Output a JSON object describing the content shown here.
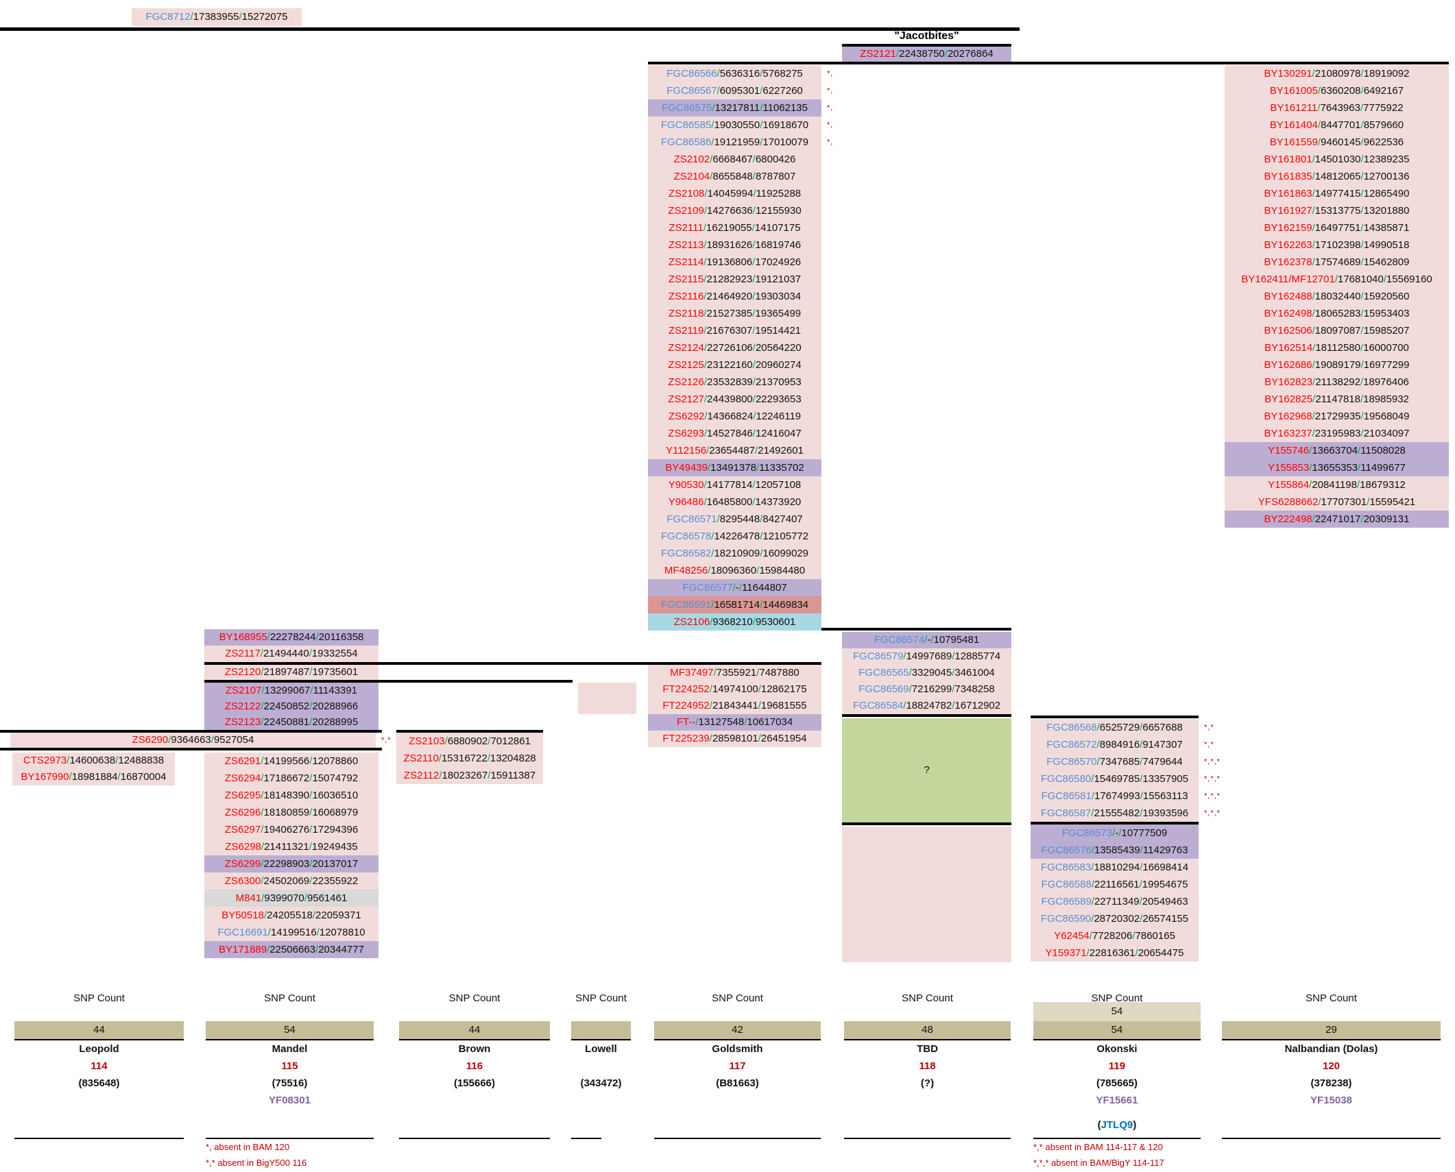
{
  "header": {
    "jacotbites": "\"Jacotbites\""
  },
  "tbd": {
    "question": "?"
  },
  "colors": {
    "row_pink": "#F2DCDB",
    "row_purple": "#BCAED2",
    "row_salmon": "#D99694",
    "row_cyan": "#A8D8E4",
    "row_gray": "#D9D9D9",
    "green_block": "#C3D69B",
    "count_box": "#C4BD97",
    "count_box_light": "#DDD9C3",
    "name_blue": "#558ED5",
    "name_red": "#FF0000",
    "slash_green": "#00B050",
    "dark_red": "#C00000",
    "yfull_purple": "#8064A2",
    "kit_blue": "#0070C0"
  },
  "blocks": {
    "top": [
      [
        "FGC8712",
        "b",
        [
          "17383955",
          "15272075"
        ],
        "p",
        ""
      ]
    ],
    "jacot": [
      [
        "ZS2121",
        "r",
        [
          "22438750",
          "20276864"
        ],
        "u",
        ""
      ]
    ],
    "middle": [
      [
        "FGC86566",
        "b",
        [
          "5636316",
          "5768275"
        ],
        "p",
        "*,"
      ],
      [
        "FGC86567",
        "b",
        [
          "6095301",
          "6227260"
        ],
        "p",
        "*,"
      ],
      [
        "FGC86575",
        "b",
        [
          "13217811",
          "11062135"
        ],
        "u",
        "*,"
      ],
      [
        "FGC86585",
        "b",
        [
          "19030550",
          "16918670"
        ],
        "p",
        "*,"
      ],
      [
        "FGC86586",
        "b",
        [
          "19121959",
          "17010079"
        ],
        "p",
        "*,"
      ],
      [
        "ZS2102",
        "r",
        [
          "6668467",
          "6800426"
        ],
        "p",
        ""
      ],
      [
        "ZS2104",
        "r",
        [
          "8655848",
          "8787807"
        ],
        "p",
        ""
      ],
      [
        "ZS2108",
        "r",
        [
          "14045994",
          "11925288"
        ],
        "p",
        ""
      ],
      [
        "ZS2109",
        "r",
        [
          "14276636",
          "12155930"
        ],
        "p",
        ""
      ],
      [
        "ZS2111",
        "r",
        [
          "16219055",
          "14107175"
        ],
        "p",
        ""
      ],
      [
        "ZS2113",
        "r",
        [
          "18931626",
          "16819746"
        ],
        "p",
        ""
      ],
      [
        "ZS2114",
        "r",
        [
          "19136806",
          "17024926"
        ],
        "p",
        ""
      ],
      [
        "ZS2115",
        "r",
        [
          "21282923",
          "19121037"
        ],
        "p",
        ""
      ],
      [
        "ZS2116",
        "r",
        [
          "21464920",
          "19303034"
        ],
        "p",
        ""
      ],
      [
        "ZS2118",
        "r",
        [
          "21527385",
          "19365499"
        ],
        "p",
        ""
      ],
      [
        "ZS2119",
        "r",
        [
          "21676307",
          "19514421"
        ],
        "p",
        ""
      ],
      [
        "ZS2124",
        "r",
        [
          "22726106",
          "20564220"
        ],
        "p",
        ""
      ],
      [
        "ZS2125",
        "r",
        [
          "23122160",
          "20960274"
        ],
        "p",
        ""
      ],
      [
        "ZS2126",
        "r",
        [
          "23532839",
          "21370953"
        ],
        "p",
        ""
      ],
      [
        "ZS2127",
        "r",
        [
          "24439800",
          "22293653"
        ],
        "p",
        ""
      ],
      [
        "ZS6292",
        "r",
        [
          "14366824",
          "12246119"
        ],
        "p",
        ""
      ],
      [
        "ZS6293",
        "r",
        [
          "14527846",
          "12416047"
        ],
        "p",
        ""
      ],
      [
        "Y112156",
        "r",
        [
          "23654487",
          "21492601"
        ],
        "p",
        ""
      ],
      [
        "BY49439",
        "r",
        [
          "13491378",
          "11335702"
        ],
        "u",
        ""
      ],
      [
        "Y90530",
        "r",
        [
          "14177814",
          "12057108"
        ],
        "p",
        ""
      ],
      [
        "Y96486",
        "r",
        [
          "16485800",
          "14373920"
        ],
        "p",
        ""
      ],
      [
        "FGC86571",
        "b",
        [
          "8295448",
          "8427407"
        ],
        "p",
        ""
      ],
      [
        "FGC86578",
        "b",
        [
          "14226478",
          "12105772"
        ],
        "p",
        ""
      ],
      [
        "FGC86582",
        "b",
        [
          "18210909",
          "16099029"
        ],
        "p",
        ""
      ],
      [
        "MF48256",
        "r",
        [
          "18096360",
          "15984480"
        ],
        "p",
        ""
      ],
      [
        "FGC86577",
        "b",
        [
          "-",
          "11644807"
        ],
        "u",
        ""
      ],
      [
        "FGC86591",
        "b",
        [
          "16581714",
          "14469834"
        ],
        "s",
        ""
      ],
      [
        "ZS2106",
        "r",
        [
          "9368210",
          "9530601"
        ],
        "c",
        ""
      ]
    ],
    "right": [
      [
        "BY130291",
        "r",
        [
          "21080978",
          "18919092"
        ],
        "p",
        ""
      ],
      [
        "BY161005",
        "r",
        [
          "6360208",
          "6492167"
        ],
        "p",
        ""
      ],
      [
        "BY161211",
        "r",
        [
          "7643963",
          "7775922"
        ],
        "p",
        ""
      ],
      [
        "BY161404",
        "r",
        [
          "8447701",
          "8579660"
        ],
        "p",
        ""
      ],
      [
        "BY161559",
        "r",
        [
          "9460145",
          "9622536"
        ],
        "p",
        ""
      ],
      [
        "BY161801",
        "r",
        [
          "14501030",
          "12389235"
        ],
        "p",
        ""
      ],
      [
        "BY161835",
        "r",
        [
          "14812065",
          "12700136"
        ],
        "p",
        ""
      ],
      [
        "BY161863",
        "r",
        [
          "14977415",
          "12865490"
        ],
        "p",
        ""
      ],
      [
        "BY161927",
        "r",
        [
          "15313775",
          "13201880"
        ],
        "p",
        ""
      ],
      [
        "BY162159",
        "r",
        [
          "16497751",
          "14385871"
        ],
        "p",
        ""
      ],
      [
        "BY162263",
        "r",
        [
          "17102398",
          "14990518"
        ],
        "p",
        ""
      ],
      [
        "BY162378",
        "r",
        [
          "17574689",
          "15462809"
        ],
        "p",
        ""
      ],
      [
        "BY162411/MF12701",
        "r",
        [
          "17681040",
          "15569160"
        ],
        "p",
        ""
      ],
      [
        "BY162488",
        "r",
        [
          "18032440",
          "15920560"
        ],
        "p",
        ""
      ],
      [
        "BY162498",
        "r",
        [
          "18065283",
          "15953403"
        ],
        "p",
        ""
      ],
      [
        "BY162506",
        "r",
        [
          "18097087",
          "15985207"
        ],
        "p",
        ""
      ],
      [
        "BY162514",
        "r",
        [
          "18112580",
          "16000700"
        ],
        "p",
        ""
      ],
      [
        "BY162686",
        "r",
        [
          "19089179",
          "16977299"
        ],
        "p",
        ""
      ],
      [
        "BY162823",
        "r",
        [
          "21138292",
          "18976406"
        ],
        "p",
        ""
      ],
      [
        "BY162825",
        "r",
        [
          "21147818",
          "18985932"
        ],
        "p",
        ""
      ],
      [
        "BY162968",
        "r",
        [
          "21729935",
          "19568049"
        ],
        "p",
        ""
      ],
      [
        "BY163237",
        "r",
        [
          "23195983",
          "21034097"
        ],
        "p",
        ""
      ],
      [
        "Y155746",
        "r",
        [
          "13663704",
          "11508028"
        ],
        "u",
        ""
      ],
      [
        "Y155853",
        "r",
        [
          "13655353",
          "11499677"
        ],
        "u",
        ""
      ],
      [
        "Y155864",
        "r",
        [
          "20841198",
          "18679312"
        ],
        "p",
        ""
      ],
      [
        "YFS6288662",
        "r",
        [
          "17707301",
          "15595421"
        ],
        "p",
        ""
      ],
      [
        "BY222498",
        "r",
        [
          "22471017",
          "20309131"
        ],
        "u",
        ""
      ]
    ],
    "left_a": [
      [
        "BY168955",
        "r",
        [
          "22278244",
          "20116358"
        ],
        "u",
        ""
      ],
      [
        "ZS2117",
        "r",
        [
          "21494440",
          "19332554"
        ],
        "p",
        ""
      ]
    ],
    "zs2120": [
      [
        "ZS2120",
        "r",
        [
          "21897487",
          "19735601"
        ],
        "p",
        ""
      ]
    ],
    "left_b": [
      [
        "ZS2107",
        "r",
        [
          "13299067",
          "11143391"
        ],
        "u",
        ""
      ],
      [
        "ZS2122",
        "r",
        [
          "22450852",
          "20288966"
        ],
        "u",
        ""
      ],
      [
        "ZS2123",
        "r",
        [
          "22450881",
          "20288995"
        ],
        "u",
        ""
      ]
    ],
    "zs6290": [
      [
        "ZS6290",
        "r",
        [
          "9364663",
          "9527054"
        ],
        "p",
        "*,*"
      ]
    ],
    "cts": [
      [
        "CTS2973",
        "r",
        [
          "14600638",
          "12488838"
        ],
        "p",
        ""
      ],
      [
        "BY167990",
        "r",
        [
          "18981884",
          "16870004"
        ],
        "p",
        ""
      ]
    ],
    "zs6291": [
      [
        "ZS6291",
        "r",
        [
          "14199566",
          "12078860"
        ],
        "p",
        ""
      ],
      [
        "ZS6294",
        "r",
        [
          "17186672",
          "15074792"
        ],
        "p",
        ""
      ],
      [
        "ZS6295",
        "r",
        [
          "18148390",
          "16036510"
        ],
        "p",
        ""
      ],
      [
        "ZS6296",
        "r",
        [
          "18180859",
          "16068979"
        ],
        "p",
        ""
      ],
      [
        "ZS6297",
        "r",
        [
          "19406276",
          "17294396"
        ],
        "p",
        ""
      ],
      [
        "ZS6298",
        "r",
        [
          "21411321",
          "19249435"
        ],
        "p",
        ""
      ],
      [
        "ZS6299",
        "r",
        [
          "22298903",
          "20137017"
        ],
        "u",
        ""
      ],
      [
        "ZS6300",
        "r",
        [
          "24502069",
          "22355922"
        ],
        "p",
        ""
      ],
      [
        "M841",
        "r",
        [
          "9399070",
          "9561461"
        ],
        "g",
        ""
      ],
      [
        "BY50518",
        "r",
        [
          "24205518",
          "22059371"
        ],
        "p",
        ""
      ],
      [
        "FGC16691",
        "b",
        [
          "14199516",
          "12078810"
        ],
        "p",
        ""
      ],
      [
        "BY171889",
        "r",
        [
          "22506663",
          "20344777"
        ],
        "u",
        ""
      ]
    ],
    "zs2103": [
      [
        "ZS2103",
        "r",
        [
          "6880902",
          "7012861"
        ],
        "p",
        ""
      ],
      [
        "ZS2110",
        "r",
        [
          "15316722",
          "13204828"
        ],
        "p",
        ""
      ],
      [
        "ZS2112",
        "r",
        [
          "18023267",
          "15911387"
        ],
        "p",
        ""
      ]
    ],
    "goldsmith": [
      [
        "MF37497",
        "r",
        [
          "7355921",
          "7487880"
        ],
        "p",
        ""
      ],
      [
        "FT224252",
        "r",
        [
          "14974100",
          "12862175"
        ],
        "p",
        ""
      ],
      [
        "FT224952",
        "r",
        [
          "21843441",
          "19681555"
        ],
        "p",
        ""
      ],
      [
        "FT--",
        "r",
        [
          "13127548",
          "10617034"
        ],
        "u",
        ""
      ],
      [
        "FT225239",
        "r",
        [
          "28598101",
          "26451954"
        ],
        "p",
        ""
      ]
    ],
    "tbd_upper": [
      [
        "FGC86574",
        "b",
        [
          "-",
          "10795481"
        ],
        "u",
        ""
      ],
      [
        "FGC86579",
        "b",
        [
          "14997689",
          "12885774"
        ],
        "p",
        ""
      ],
      [
        "FGC86565",
        "b",
        [
          "3329045",
          "3461004"
        ],
        "p",
        ""
      ],
      [
        "FGC86569",
        "b",
        [
          "7216299",
          "7348258"
        ],
        "p",
        ""
      ],
      [
        "FGC86584",
        "b",
        [
          "18824782",
          "16712902"
        ],
        "p",
        ""
      ]
    ],
    "ok_upper": [
      [
        "FGC86568",
        "b",
        [
          "6525729",
          "6657688"
        ],
        "p",
        "*,*"
      ],
      [
        "FGC86572",
        "b",
        [
          "8984916",
          "9147307"
        ],
        "p",
        "*,*"
      ],
      [
        "FGC86570",
        "b",
        [
          "7347685",
          "7479644"
        ],
        "p",
        "*,*,*"
      ],
      [
        "FGC86580",
        "b",
        [
          "15469785",
          "13357905"
        ],
        "p",
        "*,*,*"
      ],
      [
        "FGC86581",
        "b",
        [
          "17674993",
          "15563113"
        ],
        "p",
        "*,*,*"
      ],
      [
        "FGC86587",
        "b",
        [
          "21555482",
          "19393596"
        ],
        "p",
        "*,*,*"
      ]
    ],
    "ok_lower": [
      [
        "FGC86573",
        "b",
        [
          "-",
          "10777509"
        ],
        "u",
        ""
      ],
      [
        "FGC86576",
        "b",
        [
          "13585439",
          "11429763"
        ],
        "u",
        ""
      ],
      [
        "FGC86583",
        "b",
        [
          "18810294",
          "16698414"
        ],
        "p",
        ""
      ],
      [
        "FGC86588",
        "b",
        [
          "22116561",
          "19954675"
        ],
        "p",
        ""
      ],
      [
        "FGC86589",
        "b",
        [
          "22711349",
          "20549463"
        ],
        "p",
        ""
      ],
      [
        "FGC86590",
        "b",
        [
          "28720302",
          "26574155"
        ],
        "p",
        ""
      ],
      [
        "Y62454",
        "r",
        [
          "7728206",
          "7860165"
        ],
        "p",
        ""
      ],
      [
        "Y159371",
        "r",
        [
          "22816361",
          "20654475"
        ],
        "p",
        ""
      ]
    ]
  },
  "bottom": {
    "columns": [
      {
        "label": "SNP Count",
        "count": "44",
        "name": "Leopold",
        "num": "114",
        "paren": "(835648)",
        "yf": ""
      },
      {
        "label": "SNP Count",
        "count": "54",
        "name": "Mandel",
        "num": "115",
        "paren": "(75516)",
        "yf": "YF08301",
        "footnotes": [
          "*, absent in BAM 120",
          "*,* absent in BigY500 116"
        ]
      },
      {
        "label": "SNP Count",
        "count": "44",
        "name": "Brown",
        "num": "116",
        "paren": "(155666)",
        "yf": ""
      },
      {
        "label": "SNP Count",
        "count": "",
        "name": "Lowell",
        "num": "",
        "paren": "(343472)",
        "yf": ""
      },
      {
        "label": "SNP Count",
        "count": "42",
        "name": "Goldsmith",
        "num": "117",
        "paren": "(B81663)",
        "yf": ""
      },
      {
        "label": "SNP Count",
        "count": "48",
        "name": "TBD",
        "num": "118",
        "paren": "(?)",
        "yf": ""
      },
      {
        "label": "SNP Count",
        "count_light": "54",
        "count": "54",
        "name": "Okonski",
        "num": "119",
        "paren": "(785665)",
        "yf": "YF15661",
        "kit": {
          "open": "(",
          "id": "JTLQ9",
          "close": ")"
        },
        "footnotes": [
          "*,* absent in BAM 114-117 & 120",
          "*,*,* absent in BAM/BigY 114-117"
        ]
      },
      {
        "label": "SNP Count",
        "count": "29",
        "name": "Nalbandian (Dolas)",
        "num": "120",
        "paren": "(378238)",
        "yf": "YF15038"
      }
    ]
  }
}
